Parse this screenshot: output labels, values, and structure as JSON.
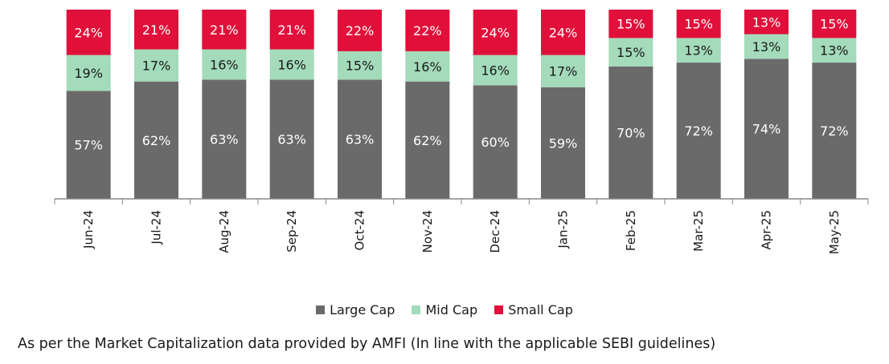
{
  "chart_data": {
    "type": "bar",
    "stacked": true,
    "categories": [
      "Jun-24",
      "Jul-24",
      "Aug-24",
      "Sep-24",
      "Oct-24",
      "Nov-24",
      "Dec-24",
      "Jan-25",
      "Feb-25",
      "Mar-25",
      "Apr-25",
      "May-25"
    ],
    "series": [
      {
        "name": "Large Cap",
        "color": "#6b6a6a",
        "label_color": "#ffffff",
        "values": [
          57,
          62,
          63,
          63,
          63,
          62,
          60,
          59,
          70,
          72,
          74,
          72
        ]
      },
      {
        "name": "Mid Cap",
        "color": "#a3dbbb",
        "label_color": "#1a1a1a",
        "values": [
          19,
          17,
          16,
          16,
          15,
          16,
          16,
          17,
          15,
          13,
          13,
          13
        ]
      },
      {
        "name": "Small Cap",
        "color": "#e0103a",
        "label_color": "#ffffff",
        "values": [
          24,
          21,
          21,
          21,
          22,
          22,
          24,
          24,
          15,
          15,
          13,
          15
        ]
      }
    ],
    "ylim": [
      0,
      100
    ],
    "grid": false,
    "legend_position": "bottom"
  },
  "legend": [
    {
      "label": "Large Cap",
      "color": "#6b6a6a"
    },
    {
      "label": "Mid Cap",
      "color": "#a3dbbb"
    },
    {
      "label": "Small Cap",
      "color": "#e0103a"
    }
  ],
  "footnote": "As per the Market Capitalization data provided by AMFI (In line with the applicable SEBI guidelines)"
}
